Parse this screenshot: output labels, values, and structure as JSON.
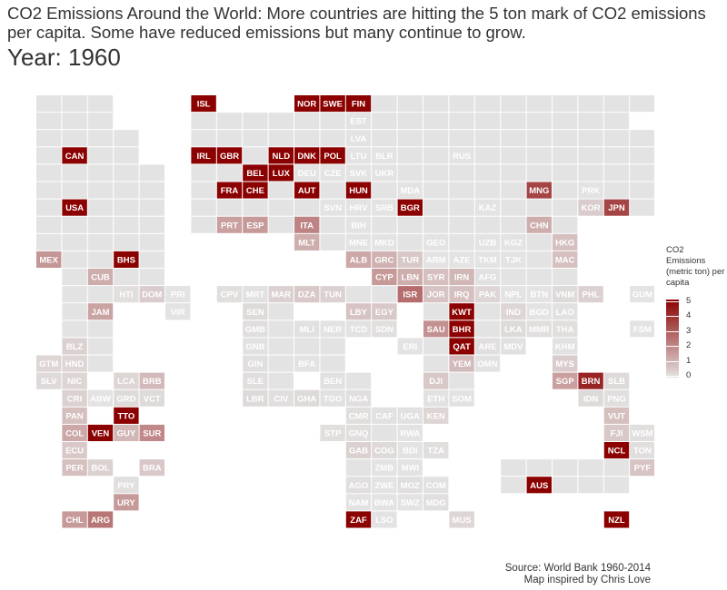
{
  "title": "CO2 Emissions Around the World: More countries are hitting the 5 ton mark of CO2 emissions per capita. Some have reduced emissions but many continue to grow.",
  "year_label": "Year: 1960",
  "caption": [
    "Source: World Bank 1960-2014",
    "Map inspired by Chris Love"
  ],
  "chart_data": {
    "type": "heatmap",
    "value_name": "CO2 Emissions (metric ton) per capita",
    "color_scale": {
      "min": 0,
      "max": 5,
      "low_color": "#e3e3e3",
      "high_color": "#8b0000"
    },
    "legend": {
      "title": "CO2 Emissions (metric ton) per capita",
      "ticks": [
        0,
        1,
        2,
        3,
        4,
        5
      ],
      "placement": "right"
    },
    "tiles": [
      {
        "code": "ISL",
        "col": 6,
        "row": 0,
        "value": 5.5
      },
      {
        "code": "NOR",
        "col": 10,
        "row": 0,
        "value": 5.0
      },
      {
        "code": "SWE",
        "col": 11,
        "row": 0,
        "value": 6.0
      },
      {
        "code": "FIN",
        "col": 12,
        "row": 0,
        "value": 5.0
      },
      {
        "code": "EST",
        "col": 12,
        "row": 1,
        "value": null
      },
      {
        "code": "LVA",
        "col": 12,
        "row": 2,
        "value": null
      },
      {
        "code": "CAN",
        "col": 1,
        "row": 3,
        "value": 10.8
      },
      {
        "code": "IRL",
        "col": 6,
        "row": 3,
        "value": 5.5
      },
      {
        "code": "GBR",
        "col": 7,
        "row": 3,
        "value": 11.2
      },
      {
        "code": "NLD",
        "col": 9,
        "row": 3,
        "value": 6.5
      },
      {
        "code": "DNK",
        "col": 10,
        "row": 3,
        "value": 6.5
      },
      {
        "code": "POL",
        "col": 11,
        "row": 3,
        "value": 5.5
      },
      {
        "code": "LTU",
        "col": 12,
        "row": 3,
        "value": null
      },
      {
        "code": "BLR",
        "col": 13,
        "row": 3,
        "value": null
      },
      {
        "code": "RUS",
        "col": 16,
        "row": 3,
        "value": null
      },
      {
        "code": "BEL",
        "col": 8,
        "row": 4,
        "value": 10.0
      },
      {
        "code": "LUX",
        "col": 9,
        "row": 4,
        "value": 30.0
      },
      {
        "code": "DEU",
        "col": 10,
        "row": 4,
        "value": null
      },
      {
        "code": "CZE",
        "col": 11,
        "row": 4,
        "value": null
      },
      {
        "code": "SVK",
        "col": 12,
        "row": 4,
        "value": null
      },
      {
        "code": "UKR",
        "col": 13,
        "row": 4,
        "value": null
      },
      {
        "code": "FRA",
        "col": 7,
        "row": 5,
        "value": 5.7
      },
      {
        "code": "CHE",
        "col": 8,
        "row": 5,
        "value": 5.1
      },
      {
        "code": "AUT",
        "col": 10,
        "row": 5,
        "value": 5.0
      },
      {
        "code": "HUN",
        "col": 12,
        "row": 5,
        "value": 5.0
      },
      {
        "code": "MDA",
        "col": 14,
        "row": 5,
        "value": null
      },
      {
        "code": "MNG",
        "col": 19,
        "row": 5,
        "value": 3.5
      },
      {
        "code": "PRK",
        "col": 21,
        "row": 5,
        "value": null
      },
      {
        "code": "USA",
        "col": 1,
        "row": 6,
        "value": 16.0
      },
      {
        "code": "SVN",
        "col": 11,
        "row": 6,
        "value": null
      },
      {
        "code": "HRV",
        "col": 12,
        "row": 6,
        "value": null
      },
      {
        "code": "SRB",
        "col": 13,
        "row": 6,
        "value": null
      },
      {
        "code": "BGR",
        "col": 14,
        "row": 6,
        "value": 5.5
      },
      {
        "code": "KAZ",
        "col": 17,
        "row": 6,
        "value": null
      },
      {
        "code": "KOR",
        "col": 21,
        "row": 6,
        "value": 0.5
      },
      {
        "code": "JPN",
        "col": 22,
        "row": 6,
        "value": 3.5
      },
      {
        "code": "PRT",
        "col": 7,
        "row": 7,
        "value": 1.5
      },
      {
        "code": "ESP",
        "col": 8,
        "row": 7,
        "value": 1.6
      },
      {
        "code": "ITA",
        "col": 10,
        "row": 7,
        "value": 2.1
      },
      {
        "code": "BIH",
        "col": 12,
        "row": 7,
        "value": null
      },
      {
        "code": "CHN",
        "col": 19,
        "row": 7,
        "value": 1.2
      },
      {
        "code": "MLT",
        "col": 10,
        "row": 8,
        "value": 1.2
      },
      {
        "code": "MNE",
        "col": 12,
        "row": 8,
        "value": null
      },
      {
        "code": "MKD",
        "col": 13,
        "row": 8,
        "value": null
      },
      {
        "code": "GEO",
        "col": 15,
        "row": 8,
        "value": null
      },
      {
        "code": "UZB",
        "col": 17,
        "row": 8,
        "value": null
      },
      {
        "code": "KGZ",
        "col": 18,
        "row": 8,
        "value": null
      },
      {
        "code": "HKG",
        "col": 20,
        "row": 8,
        "value": 0.8
      },
      {
        "code": "MEX",
        "col": 0,
        "row": 9,
        "value": 1.7
      },
      {
        "code": "BHS",
        "col": 3,
        "row": 9,
        "value": 9.0
      },
      {
        "code": "ALB",
        "col": 12,
        "row": 9,
        "value": 1.3
      },
      {
        "code": "GRC",
        "col": 13,
        "row": 9,
        "value": 1.1
      },
      {
        "code": "TUR",
        "col": 14,
        "row": 9,
        "value": 0.6
      },
      {
        "code": "ARM",
        "col": 15,
        "row": 9,
        "value": null
      },
      {
        "code": "AZE",
        "col": 16,
        "row": 9,
        "value": null
      },
      {
        "code": "TKM",
        "col": 17,
        "row": 9,
        "value": null
      },
      {
        "code": "TJK",
        "col": 18,
        "row": 9,
        "value": null
      },
      {
        "code": "MAC",
        "col": 20,
        "row": 9,
        "value": 0.8
      },
      {
        "code": "CUB",
        "col": 2,
        "row": 10,
        "value": 1.2
      },
      {
        "code": "CYP",
        "col": 13,
        "row": 10,
        "value": 1.6
      },
      {
        "code": "LBN",
        "col": 14,
        "row": 10,
        "value": 1.2
      },
      {
        "code": "SYR",
        "col": 15,
        "row": 10,
        "value": 0.8
      },
      {
        "code": "IRN",
        "col": 16,
        "row": 10,
        "value": 1.0
      },
      {
        "code": "AFG",
        "col": 17,
        "row": 10,
        "value": 0.05
      },
      {
        "code": "HTI",
        "col": 3,
        "row": 11,
        "value": 0.1
      },
      {
        "code": "DOM",
        "col": 4,
        "row": 11,
        "value": 0.5
      },
      {
        "code": "PRI",
        "col": 5,
        "row": 11,
        "value": null
      },
      {
        "code": "CPV",
        "col": 7,
        "row": 11,
        "value": 0.1
      },
      {
        "code": "MRT",
        "col": 8,
        "row": 11,
        "value": 0.05
      },
      {
        "code": "MAR",
        "col": 9,
        "row": 11,
        "value": 0.4
      },
      {
        "code": "DZA",
        "col": 10,
        "row": 11,
        "value": 0.6
      },
      {
        "code": "TUN",
        "col": 11,
        "row": 11,
        "value": 0.4
      },
      {
        "code": "ISR",
        "col": 14,
        "row": 11,
        "value": 2.6
      },
      {
        "code": "JOR",
        "col": 15,
        "row": 11,
        "value": 0.7
      },
      {
        "code": "IRQ",
        "col": 16,
        "row": 11,
        "value": 0.8
      },
      {
        "code": "PAK",
        "col": 17,
        "row": 11,
        "value": 0.3
      },
      {
        "code": "NPL",
        "col": 18,
        "row": 11,
        "value": 0.01
      },
      {
        "code": "BTN",
        "col": 19,
        "row": 11,
        "value": null
      },
      {
        "code": "VNM",
        "col": 20,
        "row": 11,
        "value": 0.2
      },
      {
        "code": "PHL",
        "col": 21,
        "row": 11,
        "value": 0.4
      },
      {
        "code": "GUM",
        "col": 23,
        "row": 11,
        "value": null
      },
      {
        "code": "JAM",
        "col": 2,
        "row": 12,
        "value": 1.4
      },
      {
        "code": "VIR",
        "col": 5,
        "row": 12,
        "value": null
      },
      {
        "code": "SEN",
        "col": 8,
        "row": 12,
        "value": 0.2
      },
      {
        "code": "LBY",
        "col": 12,
        "row": 12,
        "value": 0.7
      },
      {
        "code": "EGY",
        "col": 13,
        "row": 12,
        "value": 0.6
      },
      {
        "code": "KWT",
        "col": 16,
        "row": 12,
        "value": 30.0
      },
      {
        "code": "IND",
        "col": 18,
        "row": 12,
        "value": 0.3
      },
      {
        "code": "BGD",
        "col": 19,
        "row": 12,
        "value": null
      },
      {
        "code": "LAO",
        "col": 20,
        "row": 12,
        "value": 0.05
      },
      {
        "code": "GMB",
        "col": 8,
        "row": 13,
        "value": 0.1
      },
      {
        "code": "MLI",
        "col": 10,
        "row": 13,
        "value": 0.05
      },
      {
        "code": "NER",
        "col": 11,
        "row": 13,
        "value": 0.02
      },
      {
        "code": "TCD",
        "col": 12,
        "row": 13,
        "value": 0.02
      },
      {
        "code": "SDN",
        "col": 13,
        "row": 13,
        "value": 0.1
      },
      {
        "code": "SAU",
        "col": 15,
        "row": 13,
        "value": 1.8
      },
      {
        "code": "BHR",
        "col": 16,
        "row": 13,
        "value": 6.0
      },
      {
        "code": "LKA",
        "col": 18,
        "row": 13,
        "value": 0.2
      },
      {
        "code": "MMR",
        "col": 19,
        "row": 13,
        "value": 0.1
      },
      {
        "code": "THA",
        "col": 20,
        "row": 13,
        "value": 0.1
      },
      {
        "code": "FSM",
        "col": 23,
        "row": 13,
        "value": null
      },
      {
        "code": "BLZ",
        "col": 1,
        "row": 14,
        "value": 0.4
      },
      {
        "code": "GNB",
        "col": 8,
        "row": 14,
        "value": 0.05
      },
      {
        "code": "ERI",
        "col": 14,
        "row": 14,
        "value": null
      },
      {
        "code": "QAT",
        "col": 16,
        "row": 14,
        "value": 40.0
      },
      {
        "code": "ARE",
        "col": 17,
        "row": 14,
        "value": 0.1
      },
      {
        "code": "MDV",
        "col": 18,
        "row": 14,
        "value": 0.05
      },
      {
        "code": "KHM",
        "col": 20,
        "row": 14,
        "value": 0.05
      },
      {
        "code": "GTM",
        "col": 0,
        "row": 15,
        "value": 0.3
      },
      {
        "code": "HND",
        "col": 1,
        "row": 15,
        "value": 0.3
      },
      {
        "code": "GIN",
        "col": 8,
        "row": 15,
        "value": 0.1
      },
      {
        "code": "BFA",
        "col": 10,
        "row": 15,
        "value": 0.01
      },
      {
        "code": "YEM",
        "col": 16,
        "row": 15,
        "value": 0.9
      },
      {
        "code": "OMN",
        "col": 17,
        "row": 15,
        "value": 0.03
      },
      {
        "code": "MYS",
        "col": 20,
        "row": 15,
        "value": 0.5
      },
      {
        "code": "SLV",
        "col": 0,
        "row": 16,
        "value": 0.2
      },
      {
        "code": "NIC",
        "col": 1,
        "row": 16,
        "value": 0.3
      },
      {
        "code": "LCA",
        "col": 3,
        "row": 16,
        "value": 0.3
      },
      {
        "code": "BRB",
        "col": 4,
        "row": 16,
        "value": 0.9
      },
      {
        "code": "SLE",
        "col": 8,
        "row": 16,
        "value": 0.1
      },
      {
        "code": "BEN",
        "col": 11,
        "row": 16,
        "value": 0.05
      },
      {
        "code": "DJI",
        "col": 15,
        "row": 16,
        "value": 0.6
      },
      {
        "code": "SGP",
        "col": 20,
        "row": 16,
        "value": 1.5
      },
      {
        "code": "BRN",
        "col": 21,
        "row": 16,
        "value": 4.2
      },
      {
        "code": "SLB",
        "col": 22,
        "row": 16,
        "value": 0.2
      },
      {
        "code": "CRI",
        "col": 1,
        "row": 17,
        "value": 0.4
      },
      {
        "code": "ABW",
        "col": 2,
        "row": 17,
        "value": null
      },
      {
        "code": "GRD",
        "col": 3,
        "row": 17,
        "value": 0.2
      },
      {
        "code": "VCT",
        "col": 4,
        "row": 17,
        "value": 0.2
      },
      {
        "code": "LBR",
        "col": 8,
        "row": 17,
        "value": 0.2
      },
      {
        "code": "CIV",
        "col": 9,
        "row": 17,
        "value": 0.1
      },
      {
        "code": "GHA",
        "col": 10,
        "row": 17,
        "value": 0.2
      },
      {
        "code": "TGO",
        "col": 11,
        "row": 17,
        "value": 0.05
      },
      {
        "code": "NGA",
        "col": 12,
        "row": 17,
        "value": 0.1
      },
      {
        "code": "ETH",
        "col": 15,
        "row": 17,
        "value": 0.02
      },
      {
        "code": "SOM",
        "col": 16,
        "row": 17,
        "value": 0.02
      },
      {
        "code": "IDN",
        "col": 21,
        "row": 17,
        "value": 0.2
      },
      {
        "code": "PNG",
        "col": 22,
        "row": 17,
        "value": 0.1
      },
      {
        "code": "PAN",
        "col": 1,
        "row": 18,
        "value": 0.8
      },
      {
        "code": "TTO",
        "col": 3,
        "row": 18,
        "value": 12.0
      },
      {
        "code": "CMR",
        "col": 12,
        "row": 18,
        "value": 0.1
      },
      {
        "code": "CAF",
        "col": 13,
        "row": 18,
        "value": 0.05
      },
      {
        "code": "UGA",
        "col": 14,
        "row": 18,
        "value": 0.05
      },
      {
        "code": "KEN",
        "col": 15,
        "row": 18,
        "value": 0.3
      },
      {
        "code": "VUT",
        "col": 22,
        "row": 18,
        "value": 0.8
      },
      {
        "code": "COL",
        "col": 1,
        "row": 19,
        "value": 1.3
      },
      {
        "code": "VEN",
        "col": 2,
        "row": 19,
        "value": 7.5
      },
      {
        "code": "GUY",
        "col": 3,
        "row": 19,
        "value": 1.0
      },
      {
        "code": "SUR",
        "col": 4,
        "row": 19,
        "value": 2.0
      },
      {
        "code": "STP",
        "col": 11,
        "row": 19,
        "value": 0.1
      },
      {
        "code": "GNQ",
        "col": 12,
        "row": 19,
        "value": 0.1
      },
      {
        "code": "RWA",
        "col": 14,
        "row": 19,
        "value": 0.01
      },
      {
        "code": "FJI",
        "col": 22,
        "row": 19,
        "value": 0.6
      },
      {
        "code": "WSM",
        "col": 23,
        "row": 19,
        "value": 0.1
      },
      {
        "code": "ECU",
        "col": 1,
        "row": 20,
        "value": 0.6
      },
      {
        "code": "GAB",
        "col": 12,
        "row": 20,
        "value": 0.4
      },
      {
        "code": "COG",
        "col": 13,
        "row": 20,
        "value": 0.2
      },
      {
        "code": "BDI",
        "col": 14,
        "row": 20,
        "value": 0.01
      },
      {
        "code": "TZA",
        "col": 15,
        "row": 20,
        "value": 0.1
      },
      {
        "code": "NCL",
        "col": 22,
        "row": 20,
        "value": 6.0
      },
      {
        "code": "TON",
        "col": 23,
        "row": 20,
        "value": 0.1
      },
      {
        "code": "PER",
        "col": 1,
        "row": 21,
        "value": 0.8
      },
      {
        "code": "BOL",
        "col": 2,
        "row": 21,
        "value": 0.4
      },
      {
        "code": "BRA",
        "col": 4,
        "row": 21,
        "value": 0.6
      },
      {
        "code": "ZMB",
        "col": 13,
        "row": 21,
        "value": null
      },
      {
        "code": "MWI",
        "col": 14,
        "row": 21,
        "value": null
      },
      {
        "code": "PYF",
        "col": 23,
        "row": 21,
        "value": 0.7
      },
      {
        "code": "PRY",
        "col": 3,
        "row": 22,
        "value": 0.1
      },
      {
        "code": "AGO",
        "col": 12,
        "row": 22,
        "value": 0.1
      },
      {
        "code": "ZWE",
        "col": 13,
        "row": 22,
        "value": null
      },
      {
        "code": "MOZ",
        "col": 14,
        "row": 22,
        "value": 0.1
      },
      {
        "code": "COM",
        "col": 15,
        "row": 22,
        "value": 0.05
      },
      {
        "code": "AUS",
        "col": 19,
        "row": 22,
        "value": 8.6
      },
      {
        "code": "URY",
        "col": 3,
        "row": 23,
        "value": 1.6
      },
      {
        "code": "NAM",
        "col": 12,
        "row": 23,
        "value": null
      },
      {
        "code": "BWA",
        "col": 13,
        "row": 23,
        "value": null
      },
      {
        "code": "SWZ",
        "col": 14,
        "row": 23,
        "value": null
      },
      {
        "code": "MDG",
        "col": 15,
        "row": 23,
        "value": 0.1
      },
      {
        "code": "CHL",
        "col": 1,
        "row": 24,
        "value": 1.6
      },
      {
        "code": "ARG",
        "col": 2,
        "row": 24,
        "value": 2.4
      },
      {
        "code": "ZAF",
        "col": 12,
        "row": 24,
        "value": 5.7
      },
      {
        "code": "LSO",
        "col": 13,
        "row": 24,
        "value": null
      },
      {
        "code": "MUS",
        "col": 16,
        "row": 24,
        "value": 0.3
      },
      {
        "code": "NZL",
        "col": 22,
        "row": 24,
        "value": 5.3
      }
    ]
  }
}
